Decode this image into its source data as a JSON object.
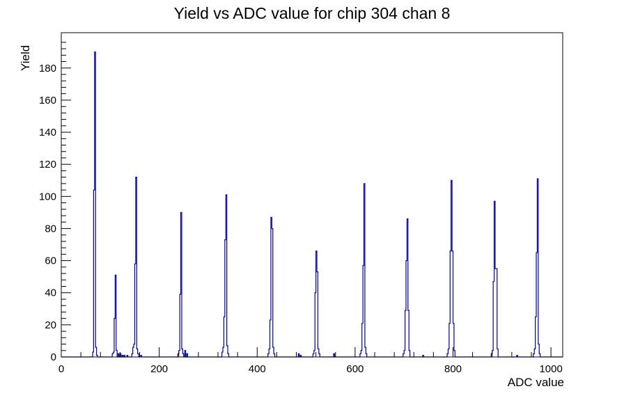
{
  "title": "Yield vs ADC value for chip 304 chan 8",
  "colors": {
    "histogram": "#00009b",
    "axis": "#000000",
    "background": "#ffffff"
  },
  "chart_data": {
    "type": "bar",
    "title": "Yield vs ADC value for chip 304 chan 8",
    "xlabel": "ADC value",
    "ylabel": "Yield",
    "xlim": [
      0,
      1024
    ],
    "ylim": [
      0,
      202
    ],
    "x_ticks_major": [
      0,
      200,
      400,
      600,
      800,
      1000
    ],
    "x_tick_labels": [
      "0",
      "200",
      "400",
      "600",
      "800",
      "1000"
    ],
    "x_minor_step": 40,
    "y_ticks_major": [
      0,
      20,
      40,
      60,
      80,
      100,
      120,
      140,
      160,
      180
    ],
    "y_tick_labels": [
      "0",
      "20",
      "40",
      "60",
      "80",
      "100",
      "120",
      "140",
      "160",
      "180"
    ],
    "y_minor_step": 4,
    "grid": false,
    "legend": "none",
    "bin_width": 2,
    "bins": [
      [
        64,
        3
      ],
      [
        66,
        104
      ],
      [
        68,
        190
      ],
      [
        70,
        6
      ],
      [
        72,
        1
      ],
      [
        104,
        2
      ],
      [
        106,
        3
      ],
      [
        108,
        24
      ],
      [
        110,
        51
      ],
      [
        112,
        4
      ],
      [
        116,
        2
      ],
      [
        120,
        2
      ],
      [
        124,
        1
      ],
      [
        128,
        1
      ],
      [
        134,
        1
      ],
      [
        144,
        2
      ],
      [
        146,
        6
      ],
      [
        148,
        8
      ],
      [
        150,
        58
      ],
      [
        152,
        112
      ],
      [
        154,
        5
      ],
      [
        156,
        2
      ],
      [
        162,
        1
      ],
      [
        238,
        2
      ],
      [
        240,
        4
      ],
      [
        242,
        39
      ],
      [
        244,
        90
      ],
      [
        246,
        5
      ],
      [
        248,
        2
      ],
      [
        252,
        4
      ],
      [
        256,
        2
      ],
      [
        328,
        3
      ],
      [
        330,
        6
      ],
      [
        332,
        25
      ],
      [
        334,
        73
      ],
      [
        336,
        101
      ],
      [
        338,
        7
      ],
      [
        340,
        2
      ],
      [
        422,
        2
      ],
      [
        424,
        5
      ],
      [
        426,
        23
      ],
      [
        428,
        87
      ],
      [
        430,
        80
      ],
      [
        432,
        6
      ],
      [
        434,
        2
      ],
      [
        484,
        2
      ],
      [
        488,
        1
      ],
      [
        514,
        2
      ],
      [
        516,
        4
      ],
      [
        518,
        40
      ],
      [
        520,
        66
      ],
      [
        522,
        53
      ],
      [
        524,
        5
      ],
      [
        526,
        2
      ],
      [
        556,
        2
      ],
      [
        610,
        2
      ],
      [
        612,
        4
      ],
      [
        614,
        21
      ],
      [
        616,
        57
      ],
      [
        618,
        108
      ],
      [
        620,
        6
      ],
      [
        622,
        2
      ],
      [
        698,
        2
      ],
      [
        700,
        4
      ],
      [
        702,
        29
      ],
      [
        704,
        60
      ],
      [
        706,
        86
      ],
      [
        708,
        29
      ],
      [
        710,
        4
      ],
      [
        738,
        1
      ],
      [
        788,
        2
      ],
      [
        790,
        5
      ],
      [
        792,
        21
      ],
      [
        794,
        66
      ],
      [
        796,
        110
      ],
      [
        798,
        66
      ],
      [
        800,
        21
      ],
      [
        802,
        4
      ],
      [
        878,
        2
      ],
      [
        880,
        4
      ],
      [
        882,
        47
      ],
      [
        884,
        97
      ],
      [
        886,
        55
      ],
      [
        888,
        55
      ],
      [
        890,
        5
      ],
      [
        930,
        1
      ],
      [
        964,
        2
      ],
      [
        966,
        5
      ],
      [
        968,
        25
      ],
      [
        970,
        65
      ],
      [
        972,
        111
      ],
      [
        974,
        8
      ],
      [
        976,
        2
      ]
    ]
  }
}
